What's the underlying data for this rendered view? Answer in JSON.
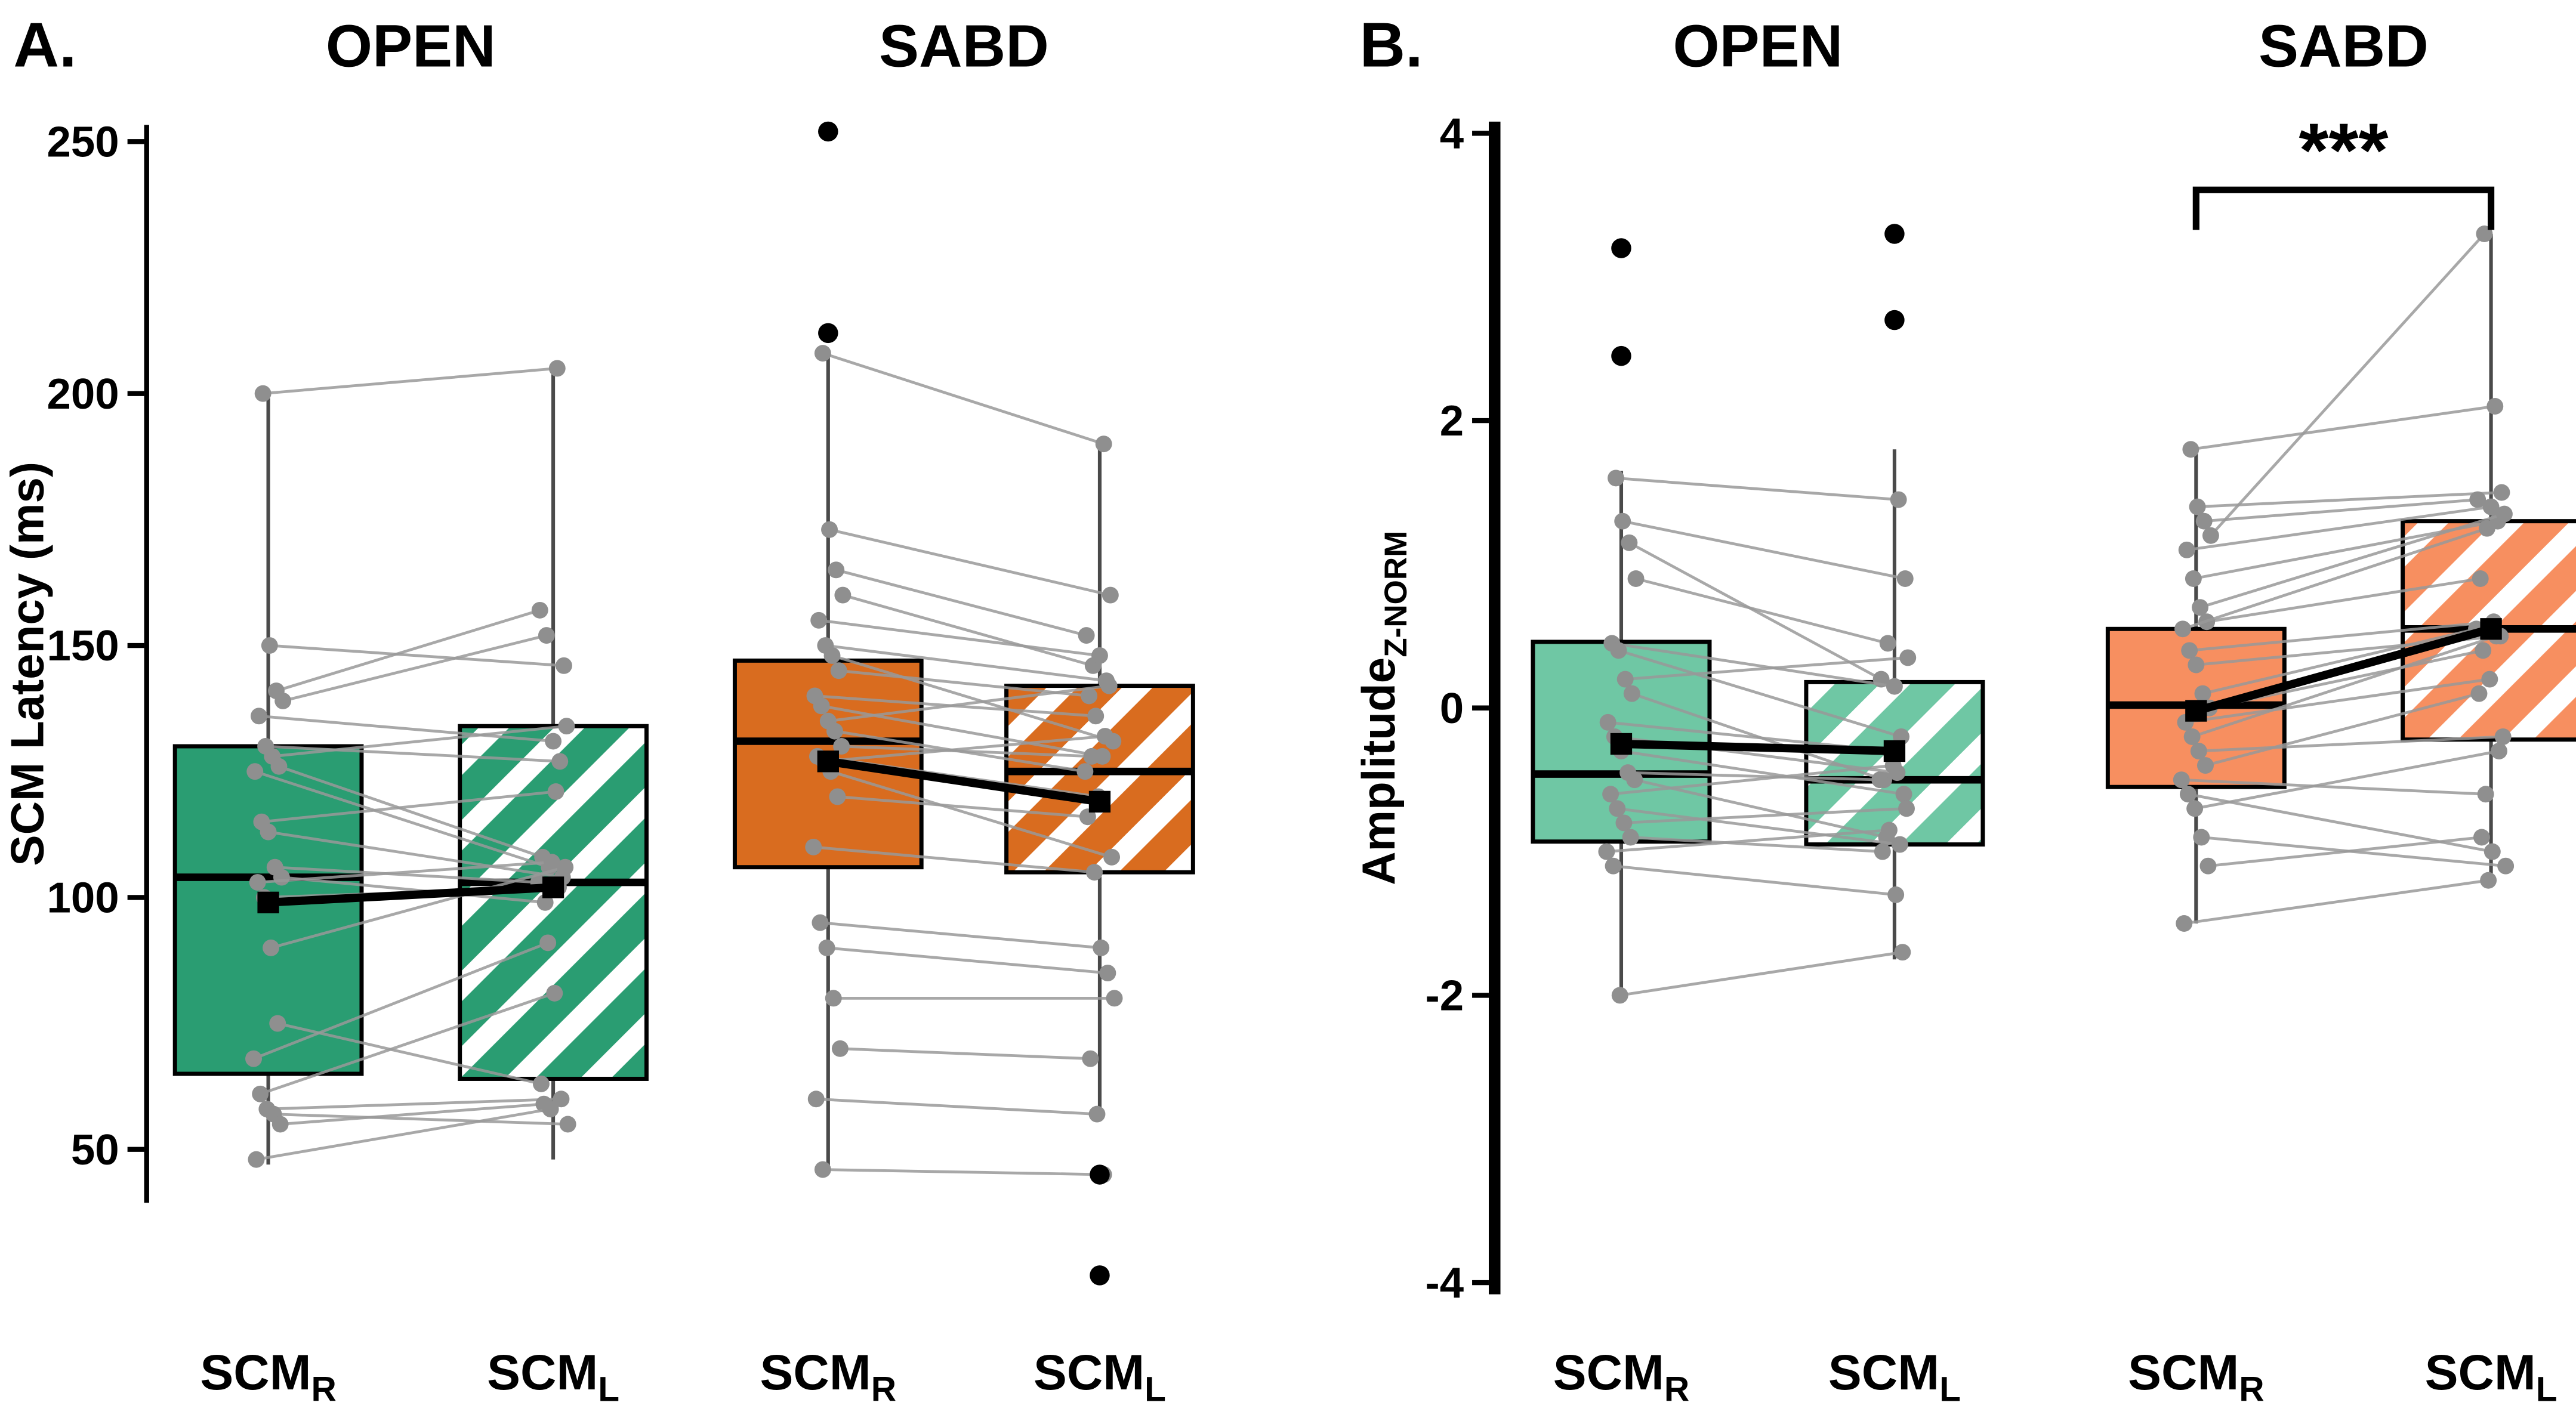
{
  "figure": {
    "background": "#ffffff"
  },
  "chart_data": {
    "type": "paired-boxplot",
    "panels": [
      {
        "letter": "A.",
        "ylabel_main": "SCM Latency (ms)",
        "ylabel_sub": "",
        "ylim": [
          20,
          258
        ],
        "yticks": [
          250,
          200,
          150,
          100,
          50
        ],
        "groups": [
          {
            "title": "OPEN",
            "color": "#2a9d72",
            "boxes": [
              {
                "label": "SCM",
                "sub": "R",
                "hatched": false,
                "whisker_low": 47,
                "q1": 65,
                "median": 104,
                "q3": 130,
                "whisker_high": 200,
                "mean": 99,
                "outliers": []
              },
              {
                "label": "SCM",
                "sub": "L",
                "hatched": true,
                "whisker_low": 48,
                "q1": 64,
                "median": 103,
                "q3": 134,
                "whisker_high": 205,
                "mean": 102,
                "outliers": []
              }
            ],
            "pairs": [
              [
                200,
                205
              ],
              [
                150,
                146
              ],
              [
                141,
                157
              ],
              [
                139,
                152
              ],
              [
                136,
                131
              ],
              [
                130,
                127
              ],
              [
                128,
                134
              ],
              [
                126,
                108
              ],
              [
                125,
                106
              ],
              [
                115,
                121
              ],
              [
                113,
                104
              ],
              [
                106,
                103
              ],
              [
                104,
                99
              ],
              [
                103,
                107
              ],
              [
                100,
                102
              ],
              [
                90,
                106
              ],
              [
                75,
                63
              ],
              [
                68,
                91
              ],
              [
                61,
                81
              ],
              [
                58,
                60
              ],
              [
                57,
                55
              ],
              [
                55,
                59
              ],
              [
                48,
                58
              ]
            ]
          },
          {
            "title": "SABD",
            "color": "#d96c1f",
            "boxes": [
              {
                "label": "SCM",
                "sub": "R",
                "hatched": false,
                "whisker_low": 46,
                "q1": 106,
                "median": 131,
                "q3": 147,
                "whisker_high": 208,
                "mean": 127,
                "outliers": [
                  212,
                  252
                ]
              },
              {
                "label": "SCM",
                "sub": "L",
                "hatched": true,
                "whisker_low": 57,
                "q1": 105,
                "median": 125,
                "q3": 142,
                "whisker_high": 190,
                "mean": 119,
                "outliers": [
                  45,
                  25
                ]
              }
            ],
            "pairs": [
              [
                208,
                190
              ],
              [
                173,
                160
              ],
              [
                165,
                152
              ],
              [
                160,
                146
              ],
              [
                155,
                148
              ],
              [
                150,
                143
              ],
              [
                148,
                131
              ],
              [
                145,
                140
              ],
              [
                140,
                136
              ],
              [
                138,
                128
              ],
              [
                135,
                142
              ],
              [
                133,
                125
              ],
              [
                130,
                128
              ],
              [
                128,
                120
              ],
              [
                127,
                132
              ],
              [
                125,
                108
              ],
              [
                120,
                116
              ],
              [
                110,
                105
              ],
              [
                95,
                90
              ],
              [
                90,
                85
              ],
              [
                80,
                80
              ],
              [
                70,
                68
              ],
              [
                60,
                57
              ],
              [
                46,
                45
              ]
            ]
          }
        ]
      },
      {
        "letter": "B.",
        "ylabel_main": "Amplitude",
        "ylabel_sub": "Z-NORM",
        "ylim": [
          -4.15,
          4.15
        ],
        "yticks": [
          4,
          2,
          0,
          -2,
          -4
        ],
        "groups": [
          {
            "title": "OPEN",
            "color": "#6fc7a4",
            "boxes": [
              {
                "label": "SCM",
                "sub": "R",
                "hatched": false,
                "whisker_low": -2.0,
                "q1": -0.93,
                "median": -0.46,
                "q3": 0.46,
                "whisker_high": 1.65,
                "mean": -0.25,
                "outliers": [
                  2.45,
                  3.2
                ]
              },
              {
                "label": "SCM",
                "sub": "L",
                "hatched": true,
                "whisker_low": -1.75,
                "q1": -0.95,
                "median": -0.5,
                "q3": 0.18,
                "whisker_high": 1.8,
                "mean": -0.3,
                "outliers": [
                  2.7,
                  3.3
                ]
              }
            ],
            "pairs": [
              [
                1.6,
                1.45
              ],
              [
                1.3,
                0.9
              ],
              [
                1.15,
                0.2
              ],
              [
                0.9,
                0.45
              ],
              [
                0.45,
                0.15
              ],
              [
                0.4,
                -0.2
              ],
              [
                0.2,
                0.35
              ],
              [
                0.1,
                -0.5
              ],
              [
                -0.1,
                -0.3
              ],
              [
                -0.2,
                -0.45
              ],
              [
                -0.3,
                -0.6
              ],
              [
                -0.45,
                -0.5
              ],
              [
                -0.5,
                -0.9
              ],
              [
                -0.6,
                -0.4
              ],
              [
                -0.7,
                -0.95
              ],
              [
                -0.8,
                -0.7
              ],
              [
                -0.9,
                -1.0
              ],
              [
                -1.0,
                -0.85
              ],
              [
                -1.1,
                -1.3
              ],
              [
                -2.0,
                -1.7
              ]
            ]
          },
          {
            "title": "SABD",
            "color": "#f78f60",
            "significance": "***",
            "boxes": [
              {
                "label": "SCM",
                "sub": "R",
                "hatched": false,
                "whisker_low": -1.5,
                "q1": -0.55,
                "median": 0.02,
                "q3": 0.55,
                "whisker_high": 1.8,
                "mean": -0.02,
                "outliers": []
              },
              {
                "label": "SCM",
                "sub": "L",
                "hatched": true,
                "whisker_low": -1.15,
                "q1": -0.22,
                "median": 0.55,
                "q3": 1.3,
                "whisker_high": 3.3,
                "mean": 0.55,
                "outliers": []
              }
            ],
            "pairs": [
              [
                1.8,
                2.1
              ],
              [
                1.4,
                1.5
              ],
              [
                1.3,
                1.45
              ],
              [
                1.2,
                3.3
              ],
              [
                1.1,
                1.4
              ],
              [
                0.9,
                1.3
              ],
              [
                0.7,
                1.35
              ],
              [
                0.6,
                0.9
              ],
              [
                0.55,
                1.25
              ],
              [
                0.4,
                0.6
              ],
              [
                0.3,
                0.5
              ],
              [
                0.1,
                0.55
              ],
              [
                0.0,
                0.4
              ],
              [
                -0.1,
                0.2
              ],
              [
                -0.2,
                0.5
              ],
              [
                -0.3,
                -0.2
              ],
              [
                -0.4,
                0.1
              ],
              [
                -0.5,
                -0.6
              ],
              [
                -0.6,
                -1.0
              ],
              [
                -0.7,
                -0.3
              ],
              [
                -0.9,
                -1.1
              ],
              [
                -1.1,
                -0.9
              ],
              [
                -1.5,
                -1.2
              ]
            ]
          }
        ]
      }
    ]
  }
}
